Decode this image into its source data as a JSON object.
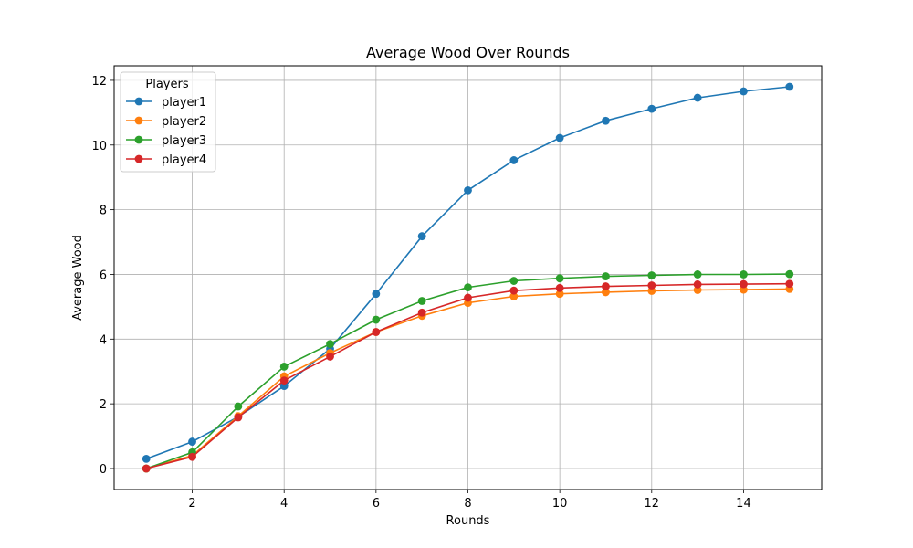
{
  "chart_data": {
    "type": "line",
    "title": "Average Wood Over Rounds",
    "xlabel": "Rounds",
    "ylabel": "Average Wood",
    "xlim": [
      0.3,
      15.7
    ],
    "ylim": [
      -0.65,
      12.45
    ],
    "xticks": [
      2,
      4,
      6,
      8,
      10,
      12,
      14
    ],
    "yticks": [
      0,
      2,
      4,
      6,
      8,
      10,
      12
    ],
    "grid": true,
    "legend": {
      "title": "Players",
      "placement": "top-left"
    },
    "x": [
      1,
      2,
      3,
      4,
      5,
      6,
      7,
      8,
      9,
      10,
      11,
      12,
      13,
      14,
      15
    ],
    "series": [
      {
        "name": "player1",
        "color": "#1f77b4",
        "values": [
          0.3,
          0.83,
          1.6,
          2.55,
          3.7,
          5.4,
          7.18,
          8.6,
          9.53,
          10.22,
          10.75,
          11.12,
          11.46,
          11.66,
          11.8
        ]
      },
      {
        "name": "player2",
        "color": "#ff7f0e",
        "values": [
          0.0,
          0.4,
          1.62,
          2.85,
          3.57,
          4.22,
          4.72,
          5.12,
          5.32,
          5.4,
          5.45,
          5.49,
          5.52,
          5.53,
          5.55
        ]
      },
      {
        "name": "player3",
        "color": "#2ca02c",
        "values": [
          0.0,
          0.5,
          1.92,
          3.15,
          3.85,
          4.6,
          5.18,
          5.6,
          5.8,
          5.88,
          5.94,
          5.97,
          6.0,
          6.0,
          6.01
        ]
      },
      {
        "name": "player4",
        "color": "#d62728",
        "values": [
          0.0,
          0.36,
          1.58,
          2.72,
          3.46,
          4.22,
          4.82,
          5.28,
          5.5,
          5.58,
          5.63,
          5.66,
          5.69,
          5.7,
          5.71
        ]
      }
    ]
  }
}
